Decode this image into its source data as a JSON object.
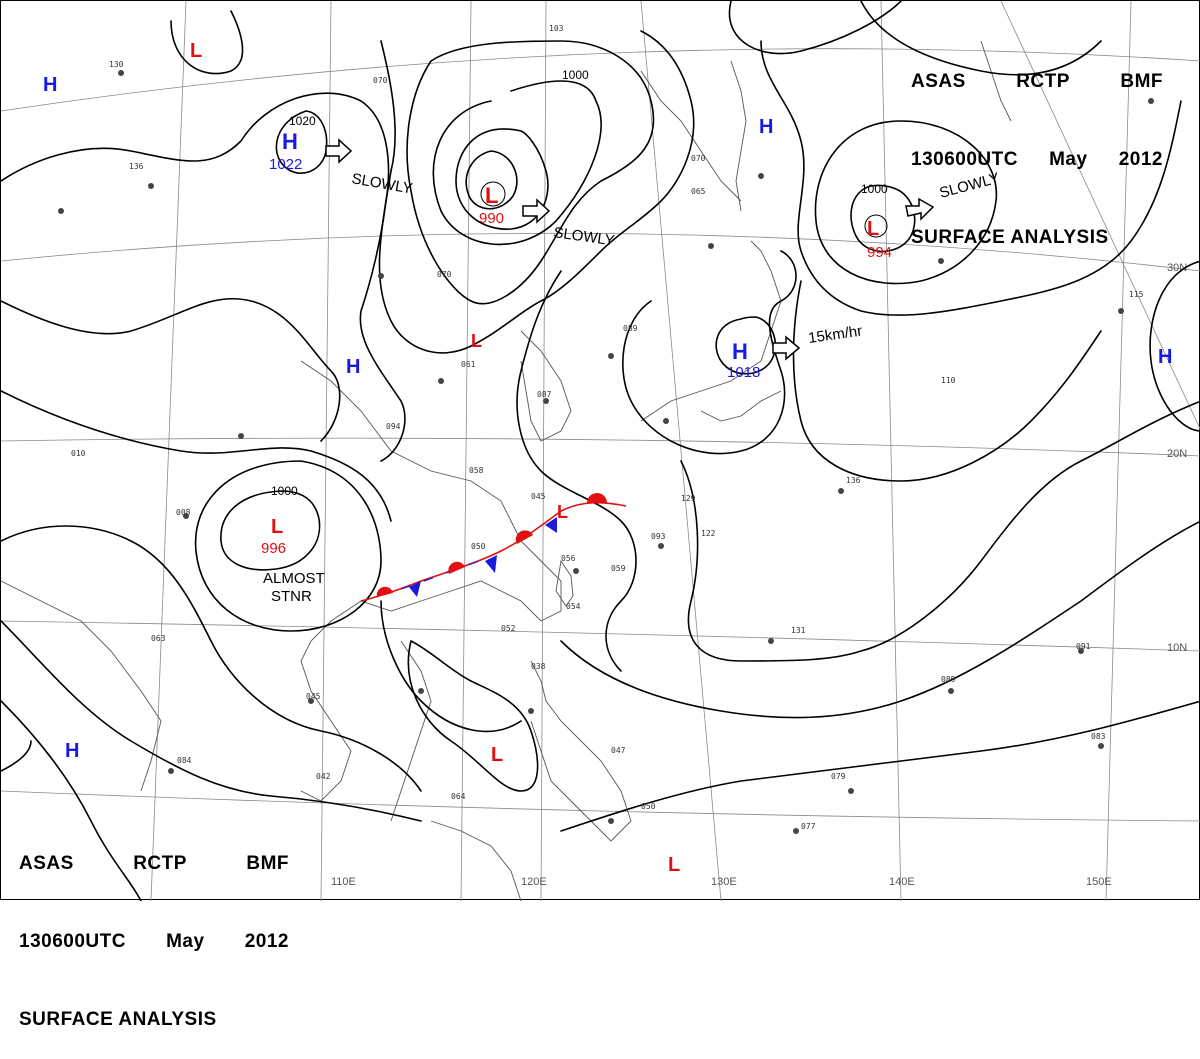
{
  "title": {
    "line1": [
      "ASAS",
      "RCTP",
      "BMF"
    ],
    "line2": [
      "130600UTC",
      "May",
      "2012"
    ],
    "line3": "SURFACE ANALYSIS"
  },
  "colors": {
    "high": "#1a1adf",
    "low": "#e01010",
    "isobar": "#000000",
    "coast": "#444444",
    "grid": "#777777",
    "front_cold": "#1a1adf",
    "front_warm": "#e01010"
  },
  "longitude_labels": [
    "110E",
    "120E",
    "130E",
    "140E",
    "150E"
  ],
  "latitude_labels": [
    "30N",
    "20N",
    "10N"
  ],
  "high_centers": [
    {
      "letter": "H",
      "pressure": "1022"
    },
    {
      "letter": "H",
      "pressure": "1018"
    },
    {
      "letter": "H",
      "pressure": ""
    },
    {
      "letter": "H",
      "pressure": ""
    },
    {
      "letter": "H",
      "pressure": ""
    },
    {
      "letter": "H",
      "pressure": ""
    },
    {
      "letter": "H",
      "pressure": ""
    }
  ],
  "low_centers": [
    {
      "letter": "L",
      "pressure": "990"
    },
    {
      "letter": "L",
      "pressure": "994"
    },
    {
      "letter": "L",
      "pressure": "996"
    },
    {
      "letter": "L",
      "pressure": ""
    },
    {
      "letter": "L",
      "pressure": ""
    },
    {
      "letter": "L",
      "pressure": ""
    },
    {
      "letter": "L",
      "pressure": ""
    },
    {
      "letter": "L",
      "pressure": ""
    }
  ],
  "isobar_labels": [
    "1020",
    "1000",
    "1000",
    "1000"
  ],
  "motion_labels": [
    "SLOWLY",
    "SLOWLY",
    "SLOWLY",
    "15km/hr",
    "ALMOST",
    "STNR"
  ]
}
